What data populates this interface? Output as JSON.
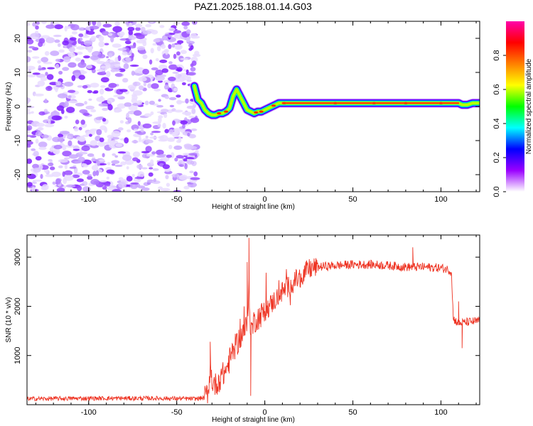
{
  "title": "PAZ1.2025.188.01.14.G03",
  "chart_data": [
    {
      "type": "heatmap",
      "xlabel": "Height of straight line (km)",
      "ylabel": "Frequency (Hz)",
      "xlim": [
        -135,
        122
      ],
      "ylim": [
        -25,
        25
      ],
      "xticks": [
        -100,
        -50,
        0,
        50,
        100
      ],
      "yticks": [
        20,
        10,
        0,
        -10,
        -20
      ],
      "grid": false,
      "noise_region_x": [
        -135,
        -40
      ],
      "ridge": {
        "x": [
          -40,
          -38,
          -36,
          -34,
          -32,
          -30,
          -28,
          -26,
          -24,
          -22,
          -20,
          -18,
          -16,
          -14,
          -12,
          -10,
          -8,
          -6,
          -4,
          -2,
          0,
          2,
          4,
          6,
          8,
          10,
          12,
          15,
          20,
          30,
          40,
          50,
          60,
          70,
          80,
          90,
          95,
          100,
          105,
          108,
          110,
          112,
          115,
          118,
          122
        ],
        "y": [
          6,
          2,
          1,
          -1,
          -2,
          -2.5,
          -2.5,
          -2,
          -2,
          -1.5,
          -0.5,
          3,
          5,
          3,
          1,
          -1,
          -1.5,
          -2,
          -1.5,
          -1.5,
          -1,
          -0.5,
          0,
          0.5,
          1,
          1,
          1,
          1,
          1,
          1,
          1,
          1,
          1,
          1,
          1,
          1,
          1,
          1,
          1,
          1,
          1,
          0.5,
          0.5,
          1,
          1
        ]
      },
      "colorbar": {
        "label": "Normalized spectral amplitude",
        "ticks": [
          0.0,
          0.2,
          0.4,
          0.6,
          0.8
        ],
        "range": [
          0,
          1
        ],
        "colors": [
          "#ffffff",
          "#9a00ff",
          "#0000ff",
          "#00ffff",
          "#00ff00",
          "#ffff00",
          "#ff8000",
          "#ff0000",
          "#ff00aa"
        ]
      }
    },
    {
      "type": "line",
      "xlabel": "Height of straight line (km)",
      "ylabel": "SNR (10 * v/v)",
      "xlim": [
        -135,
        122
      ],
      "ylim": [
        0,
        3450
      ],
      "xticks": [
        -100,
        -50,
        0,
        50,
        100
      ],
      "yticks": [
        1000,
        2000,
        3000
      ],
      "grid": false,
      "color": "#ee3322",
      "envelope": {
        "x": [
          -135,
          -100,
          -60,
          -40,
          -34,
          -32,
          -31,
          -30,
          -28,
          -25,
          -22,
          -20,
          -18,
          -15,
          -12,
          -10,
          -9,
          -8,
          -6,
          -3,
          0,
          5,
          10,
          15,
          20,
          25,
          30,
          40,
          50,
          60,
          70,
          80,
          90,
          100,
          104,
          106,
          107,
          110,
          115,
          122
        ],
        "y": [
          120,
          130,
          130,
          120,
          140,
          300,
          800,
          500,
          400,
          550,
          700,
          900,
          1100,
          1300,
          1500,
          1600,
          2300,
          1500,
          1700,
          1800,
          1900,
          2100,
          2300,
          2450,
          2600,
          2750,
          2800,
          2830,
          2850,
          2850,
          2830,
          2800,
          2800,
          2780,
          2750,
          2700,
          1750,
          1650,
          1680,
          1700
        ]
      },
      "spikes": [
        {
          "x": -31,
          "y": 1280
        },
        {
          "x": -10,
          "y": 2900
        },
        {
          "x": -9,
          "y": 3390
        },
        {
          "x": -8,
          "y": 180
        },
        {
          "x": 84,
          "y": 3200
        },
        {
          "x": 110,
          "y": 2100
        },
        {
          "x": 112,
          "y": 1150
        }
      ]
    }
  ]
}
